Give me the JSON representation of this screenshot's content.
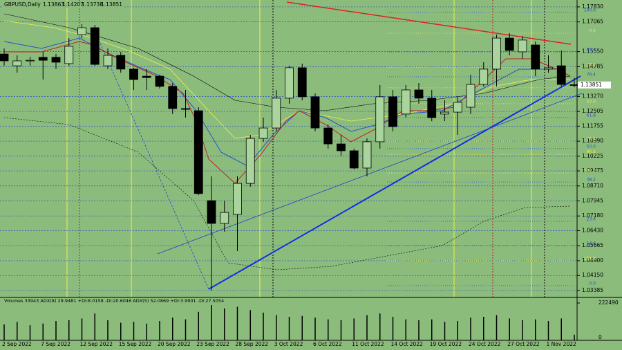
{
  "chart_data": {
    "type": "candlestick",
    "title": "GBPUSD,Daily",
    "categories": [
      "2 Sep 2022",
      null,
      null,
      "7 Sep 2022",
      null,
      null,
      "12 Sep 2022",
      null,
      null,
      "15 Sep 2022",
      null,
      null,
      "20 Sep 2022",
      null,
      null,
      "23 Sep 2022",
      null,
      null,
      "28 Sep 2022",
      null,
      null,
      "3 Oct 2022",
      null,
      null,
      "6 Oct 2022",
      null,
      null,
      "11 Oct 2022",
      null,
      null,
      "14 Oct 2022",
      null,
      null,
      "19 Oct 2022",
      null,
      null,
      "24 Oct 2022",
      null,
      null,
      "27 Oct 2022",
      null,
      null,
      "1 Nov 2022",
      null,
      null
    ],
    "open": [
      1.1543,
      1.1483,
      1.1508,
      1.1526,
      1.1526,
      1.1494,
      1.1642,
      1.1677,
      1.1483,
      1.1536,
      1.1466,
      1.143,
      1.143,
      1.1378,
      1.1265,
      1.1254,
      1.0796,
      1.068,
      1.0726,
      1.0884,
      1.1113,
      1.1166,
      1.1318,
      1.1473,
      1.1325,
      1.1166,
      1.1085,
      1.105,
      1.0962,
      1.1096,
      1.1325,
      1.1237,
      1.136,
      1.1318,
      1.1237,
      1.1247,
      1.1272,
      1.1388,
      1.1466,
      1.1624,
      1.1554,
      1.1589,
      1.1466,
      1.1483,
      1.13863
    ],
    "high": [
      1.1571,
      1.1536,
      1.1529,
      1.1554,
      1.1543,
      1.1624,
      1.1695,
      1.1691,
      1.1571,
      1.1554,
      1.1473,
      1.1466,
      1.1437,
      1.1395,
      1.136,
      1.1272,
      1.092,
      1.0796,
      1.092,
      1.1131,
      1.1219,
      1.136,
      1.1483,
      1.1494,
      1.1342,
      1.1184,
      1.1131,
      1.1061,
      1.1113,
      1.1385,
      1.136,
      1.1385,
      1.1395,
      1.136,
      1.1307,
      1.1325,
      1.1437,
      1.1501,
      1.1642,
      1.1649,
      1.1635,
      1.1607,
      1.1536,
      1.1561,
      1.14207
    ],
    "low": [
      1.1483,
      1.1448,
      1.1483,
      1.1413,
      1.1466,
      1.1483,
      1.1624,
      1.1483,
      1.1466,
      1.1448,
      1.136,
      1.136,
      1.1367,
      1.1237,
      1.1219,
      1.0824,
      1.0338,
      1.0638,
      1.0539,
      1.0867,
      1.1096,
      1.1149,
      1.129,
      1.1307,
      1.1149,
      1.1061,
      1.1025,
      1.0955,
      1.092,
      1.1061,
      1.1149,
      1.1219,
      1.129,
      1.1201,
      1.1201,
      1.1131,
      1.1237,
      1.1378,
      1.1378,
      1.1536,
      1.1519,
      1.143,
      1.1448,
      1.1378,
      1.13738
    ],
    "close": [
      1.1508,
      1.1508,
      1.1511,
      1.1511,
      1.1501,
      1.1582,
      1.1677,
      1.149,
      1.1536,
      1.1466,
      1.1413,
      1.1423,
      1.1378,
      1.1265,
      1.1261,
      1.0832,
      1.068,
      1.0736,
      1.0884,
      1.1113,
      1.1166,
      1.1318,
      1.1473,
      1.1325,
      1.1166,
      1.1085,
      1.105,
      1.0962,
      1.1096,
      1.1325,
      1.1173,
      1.136,
      1.1318,
      1.1219,
      1.1247,
      1.1297,
      1.1388,
      1.1466,
      1.1624,
      1.1561,
      1.1614,
      1.1466,
      1.1473,
      1.1388,
      1.13851
    ],
    "up_color": "#a9d49b",
    "down_color": "#000000",
    "ylim": [
      1.0303,
      1.1818
    ],
    "yticks": [
      {
        "value": 1.1783,
        "label": "1.17830"
      },
      {
        "value": 1.17065,
        "label": "1.17065"
      },
      {
        "value": 1.1555,
        "label": "1.15550"
      },
      {
        "value": 1.14785,
        "label": "1.14785"
      },
      {
        "value": 1.1327,
        "label": "1.13270"
      },
      {
        "value": 1.12505,
        "label": "1.12505"
      },
      {
        "value": 1.11755,
        "label": "1.11755"
      },
      {
        "value": 1.1099,
        "label": "1.10990"
      },
      {
        "value": 1.10225,
        "label": "1.10225"
      },
      {
        "value": 1.09475,
        "label": "1.09475"
      },
      {
        "value": 1.0871,
        "label": "1.08710"
      },
      {
        "value": 1.07945,
        "label": "1.07945"
      },
      {
        "value": 1.0718,
        "label": "1.07180"
      },
      {
        "value": 1.0643,
        "label": "1.06430"
      },
      {
        "value": 1.05665,
        "label": "1.05665"
      },
      {
        "value": 1.049,
        "label": "1.04900"
      },
      {
        "value": 1.0415,
        "label": "1.04150"
      },
      {
        "value": 1.03385,
        "label": "1.03385"
      }
    ],
    "fib_levels": [
      {
        "value": 1.1755,
        "label": "100.0",
        "color": "#1f4fd0"
      },
      {
        "value": 1.1649,
        "label": "0.0",
        "color": "#e8e850"
      },
      {
        "value": 1.1554,
        "label": "85.4",
        "color": "#1f4fd0"
      },
      {
        "value": 1.1476,
        "label": "23.6",
        "color": "#e8e850"
      },
      {
        "value": 1.1427,
        "label": "76.4",
        "color": "#1f4fd0"
      },
      {
        "value": 1.1371,
        "label": "38.2",
        "color": "#e8e850"
      },
      {
        "value": 1.129,
        "label": "50.0",
        "color": "#e8e850"
      },
      {
        "value": 1.1219,
        "label": "61.8",
        "color": "#1f4fd0"
      },
      {
        "value": 1.1099,
        "label": "76.4",
        "color": "#e8e850"
      },
      {
        "value": 1.1061,
        "label": "50.0",
        "color": "#1f4fd0"
      },
      {
        "value": 1.1032,
        "label": "85.4",
        "color": "#e8e850"
      },
      {
        "value": 1.0937,
        "label": "100.0",
        "color": "#e8e850"
      },
      {
        "value": 1.0891,
        "label": "38.2",
        "color": "#1f4fd0"
      },
      {
        "value": 1.0691,
        "label": "23.6",
        "color": "#1f4fd0"
      },
      {
        "value": 1.0567,
        "label": "14.6",
        "color": "#1f4fd0"
      },
      {
        "value": 1.049,
        "label": "161.8",
        "color": "#e8e850"
      },
      {
        "value": 1.0363,
        "label": "0.0",
        "color": "#1f4fd0"
      }
    ],
    "indicator_header": "Volumes 33943  ADX(8) 29.9481 +DI:8.0158 -DI:20.6046  ADX(5) 52.0869 +DI:3.9901 -DI:27.5054",
    "volume": [
      95000,
      110000,
      90000,
      100000,
      115000,
      120000,
      130000,
      160000,
      120000,
      105000,
      110000,
      100000,
      115000,
      135000,
      125000,
      170000,
      210000,
      190000,
      200000,
      180000,
      165000,
      150000,
      140000,
      145000,
      135000,
      125000,
      120000,
      130000,
      150000,
      160000,
      140000,
      125000,
      120000,
      125000,
      110000,
      115000,
      135000,
      140000,
      150000,
      130000,
      120000,
      125000,
      115000,
      130000,
      33943
    ],
    "volume_lim": [
      0,
      222490
    ],
    "volume_ticks": [
      0,
      222490
    ]
  }
}
